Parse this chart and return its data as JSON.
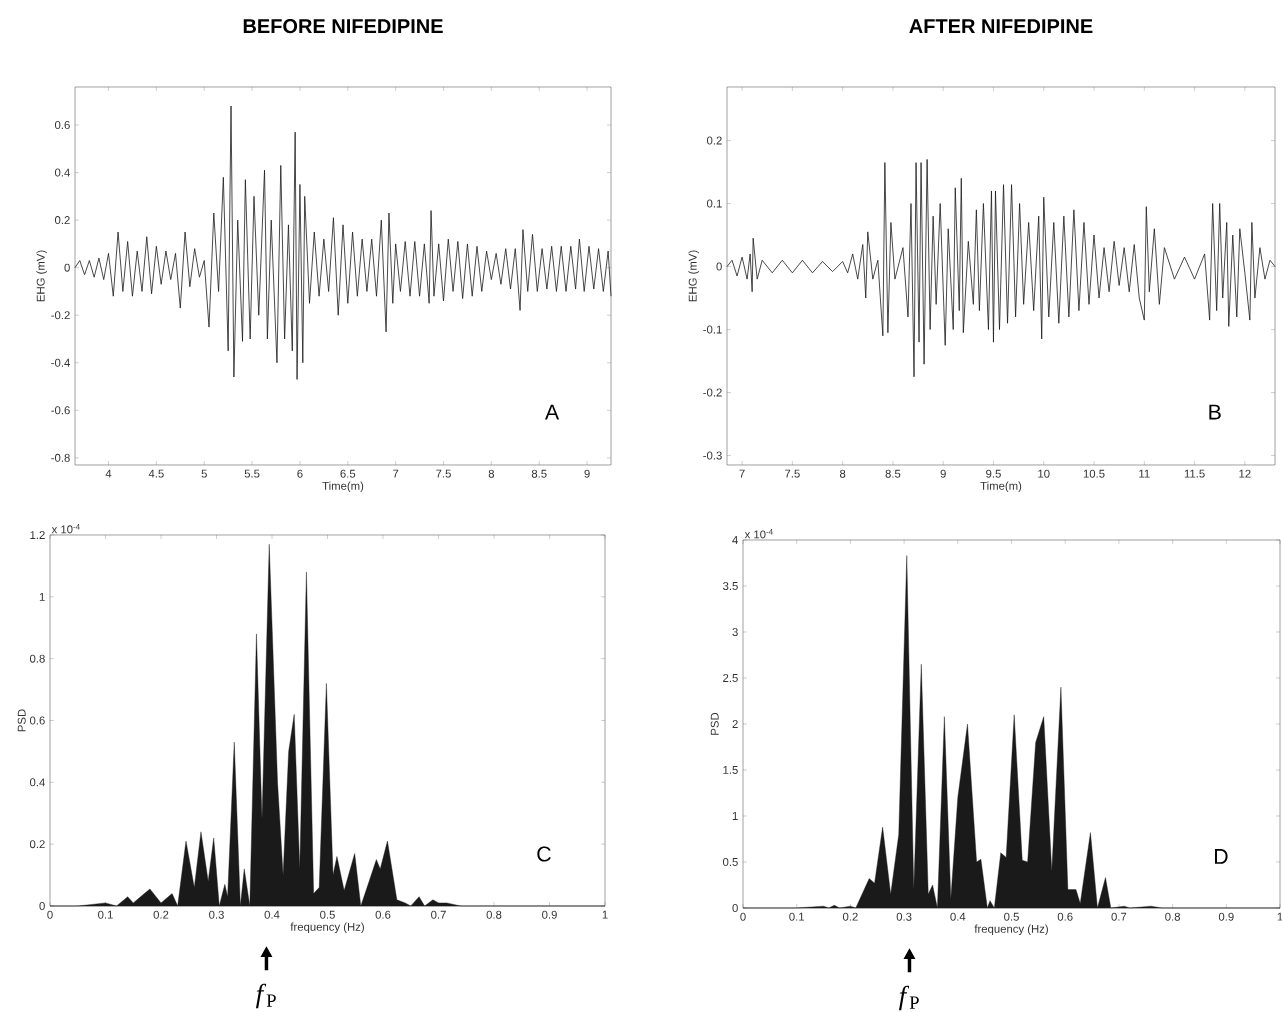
{
  "chart_data": [
    {
      "type": "line",
      "title": "BEFORE NIFEDIPINE",
      "xlabel": "Time(m)",
      "ylabel": "EHG (mV)",
      "xlim": [
        3.65,
        9.25
      ],
      "ylim": [
        -0.83,
        0.76
      ],
      "xticks": [
        4,
        4.5,
        5,
        5.5,
        6,
        6.5,
        7,
        7.5,
        8,
        8.5,
        9
      ],
      "yticks": [
        -0.8,
        -0.6,
        -0.4,
        -0.2,
        0,
        0.2,
        0.4,
        0.6
      ],
      "annotations": [
        "A"
      ],
      "series": [
        {
          "color": "#1a1a1a",
          "x": [
            3.65,
            3.7,
            3.75,
            3.8,
            3.85,
            3.9,
            3.95,
            4.0,
            4.05,
            4.1,
            4.15,
            4.2,
            4.25,
            4.3,
            4.35,
            4.4,
            4.45,
            4.5,
            4.55,
            4.6,
            4.65,
            4.7,
            4.75,
            4.8,
            4.85,
            4.9,
            4.95,
            5.0,
            5.05,
            5.1,
            5.15,
            5.2,
            5.25,
            5.28,
            5.31,
            5.35,
            5.4,
            5.43,
            5.48,
            5.52,
            5.57,
            5.63,
            5.66,
            5.7,
            5.76,
            5.8,
            5.84,
            5.88,
            5.92,
            5.95,
            5.97,
            6.0,
            6.03,
            6.05,
            6.1,
            6.15,
            6.2,
            6.25,
            6.3,
            6.35,
            6.4,
            6.45,
            6.5,
            6.55,
            6.6,
            6.65,
            6.7,
            6.75,
            6.8,
            6.85,
            6.9,
            6.93,
            6.97,
            7.0,
            7.05,
            7.1,
            7.15,
            7.2,
            7.25,
            7.3,
            7.35,
            7.37,
            7.4,
            7.45,
            7.5,
            7.55,
            7.6,
            7.65,
            7.7,
            7.75,
            7.8,
            7.85,
            7.9,
            7.95,
            8.0,
            8.05,
            8.1,
            8.15,
            8.2,
            8.25,
            8.3,
            8.33,
            8.38,
            8.43,
            8.48,
            8.53,
            8.58,
            8.63,
            8.68,
            8.73,
            8.78,
            8.83,
            8.88,
            8.92,
            8.97,
            9.02,
            9.07,
            9.12,
            9.17,
            9.22,
            9.25
          ],
          "values": [
            0,
            0.03,
            -0.03,
            0.03,
            -0.04,
            0.04,
            -0.05,
            0.06,
            -0.12,
            0.15,
            -0.1,
            0.11,
            -0.12,
            0.07,
            -0.1,
            0.13,
            -0.11,
            0.09,
            -0.07,
            0.07,
            -0.05,
            0.06,
            -0.17,
            0.15,
            -0.08,
            0.08,
            -0.04,
            0.03,
            -0.25,
            0.23,
            -0.1,
            0.38,
            -0.35,
            0.68,
            -0.46,
            0.2,
            -0.31,
            0.37,
            -0.3,
            0.3,
            -0.2,
            0.41,
            -0.3,
            0.2,
            -0.4,
            0.43,
            -0.3,
            0.18,
            -0.35,
            0.57,
            -0.47,
            0.35,
            -0.4,
            0.3,
            -0.15,
            0.15,
            -0.12,
            0.12,
            -0.1,
            0.21,
            -0.2,
            0.18,
            -0.15,
            0.15,
            -0.12,
            0.12,
            -0.1,
            0.12,
            -0.12,
            0.2,
            -0.27,
            0.23,
            -0.15,
            0.1,
            -0.1,
            0.11,
            -0.12,
            0.11,
            -0.12,
            0.1,
            -0.15,
            0.24,
            -0.12,
            0.1,
            -0.14,
            0.12,
            -0.1,
            0.11,
            -0.13,
            0.1,
            -0.12,
            0.09,
            -0.1,
            0.07,
            -0.05,
            0.06,
            -0.07,
            0.08,
            -0.09,
            0.08,
            -0.18,
            0.16,
            -0.1,
            0.14,
            -0.1,
            0.08,
            -0.09,
            0.09,
            -0.1,
            0.09,
            -0.1,
            0.09,
            -0.09,
            0.12,
            -0.1,
            0.09,
            -0.09,
            0.08,
            -0.1,
            0.07,
            -0.12
          ]
        }
      ]
    },
    {
      "type": "line",
      "title": "AFTER NIFEDIPINE",
      "xlabel": "Time(m)",
      "ylabel": "EHG (mV)",
      "xlim": [
        6.85,
        12.3
      ],
      "ylim": [
        -0.315,
        0.285
      ],
      "xticks": [
        7,
        7.5,
        8,
        8.5,
        9,
        9.5,
        10,
        10.5,
        11,
        11.5,
        12
      ],
      "yticks": [
        -0.3,
        -0.2,
        -0.1,
        0,
        0.1,
        0.2
      ],
      "annotations": [
        "B"
      ],
      "series": [
        {
          "color": "#1a1a1a",
          "x": [
            6.85,
            6.9,
            6.95,
            7.0,
            7.05,
            7.08,
            7.1,
            7.11,
            7.15,
            7.2,
            7.3,
            7.4,
            7.5,
            7.6,
            7.7,
            7.8,
            7.9,
            8.0,
            8.05,
            8.1,
            8.15,
            8.2,
            8.23,
            8.25,
            8.3,
            8.35,
            8.4,
            8.42,
            8.45,
            8.48,
            8.52,
            8.6,
            8.65,
            8.68,
            8.71,
            8.73,
            8.76,
            8.78,
            8.81,
            8.84,
            8.87,
            8.9,
            8.93,
            8.97,
            9.02,
            9.05,
            9.1,
            9.12,
            9.16,
            9.18,
            9.2,
            9.25,
            9.3,
            9.33,
            9.36,
            9.4,
            9.45,
            9.48,
            9.5,
            9.52,
            9.56,
            9.6,
            9.64,
            9.68,
            9.72,
            9.76,
            9.8,
            9.85,
            9.9,
            9.95,
            9.98,
            10.0,
            10.05,
            10.1,
            10.15,
            10.2,
            10.25,
            10.3,
            10.35,
            10.4,
            10.45,
            10.5,
            10.55,
            10.6,
            10.65,
            10.7,
            10.75,
            10.8,
            10.85,
            10.9,
            10.95,
            11.0,
            11.02,
            11.05,
            11.1,
            11.15,
            11.2,
            11.3,
            11.4,
            11.5,
            11.6,
            11.65,
            11.68,
            11.72,
            11.75,
            11.78,
            11.82,
            11.84,
            11.88,
            11.92,
            11.95,
            12.0,
            12.05,
            12.07,
            12.1,
            12.15,
            12.2,
            12.25,
            12.3
          ],
          "values": [
            0,
            0.01,
            -0.015,
            0.015,
            -0.02,
            0.02,
            -0.04,
            0.045,
            -0.02,
            0.01,
            -0.01,
            0.01,
            -0.01,
            0.01,
            -0.01,
            0.008,
            -0.008,
            0.008,
            -0.01,
            0.02,
            -0.02,
            0.035,
            -0.05,
            0.055,
            -0.02,
            0.01,
            -0.11,
            0.165,
            -0.105,
            0.07,
            -0.02,
            0.03,
            -0.08,
            0.1,
            -0.175,
            0.165,
            -0.12,
            0.165,
            -0.155,
            0.17,
            -0.1,
            0.08,
            -0.06,
            0.1,
            -0.125,
            0.06,
            -0.1,
            0.125,
            -0.07,
            0.14,
            -0.105,
            0.04,
            -0.06,
            0.09,
            -0.07,
            0.1,
            -0.1,
            0.12,
            -0.12,
            0.12,
            -0.1,
            0.13,
            -0.09,
            0.13,
            -0.08,
            0.1,
            -0.06,
            0.07,
            -0.07,
            0.08,
            -0.115,
            0.11,
            -0.08,
            0.07,
            -0.09,
            0.08,
            -0.08,
            0.09,
            -0.07,
            0.07,
            -0.06,
            0.05,
            -0.05,
            0.03,
            -0.04,
            0.04,
            -0.03,
            0.03,
            -0.04,
            0.035,
            -0.05,
            -0.085,
            0.095,
            -0.04,
            0.06,
            -0.06,
            0.03,
            -0.02,
            0.015,
            -0.02,
            0.02,
            -0.085,
            0.1,
            -0.07,
            0.1,
            -0.05,
            0.07,
            -0.095,
            0.05,
            -0.08,
            0.06,
            -0.01,
            -0.085,
            0.07,
            -0.05,
            0.03,
            -0.02,
            0.01,
            0
          ]
        }
      ]
    },
    {
      "type": "area",
      "xlabel": "frequency (Hz)",
      "ylabel": "PSD",
      "xlim": [
        0,
        1
      ],
      "ylim": [
        0,
        1.2
      ],
      "xticks": [
        0,
        0.1,
        0.2,
        0.3,
        0.4,
        0.5,
        0.6,
        0.7,
        0.8,
        0.9,
        1
      ],
      "yticks": [
        0,
        0.2,
        0.4,
        0.6,
        0.8,
        1,
        1.2
      ],
      "annotations": [
        "C",
        "x 10$^{-4}$",
        {
          "text": "*f*$_{P}$",
          "x": 0.39,
          "y": 0
        }
      ],
      "series": [
        {
          "color": "#1a1a1a",
          "x": [
            0,
            0.05,
            0.1,
            0.12,
            0.14,
            0.15,
            0.17,
            0.18,
            0.2,
            0.22,
            0.23,
            0.245,
            0.26,
            0.272,
            0.285,
            0.295,
            0.305,
            0.315,
            0.32,
            0.332,
            0.343,
            0.35,
            0.36,
            0.372,
            0.382,
            0.395,
            0.41,
            0.42,
            0.43,
            0.44,
            0.45,
            0.462,
            0.475,
            0.485,
            0.498,
            0.51,
            0.517,
            0.53,
            0.549,
            0.56,
            0.575,
            0.588,
            0.595,
            0.608,
            0.625,
            0.64,
            0.65,
            0.665,
            0.675,
            0.69,
            0.7,
            0.715,
            0.74,
            0.8,
            1
          ],
          "values": [
            0,
            0,
            0.01,
            0,
            0.03,
            0.01,
            0.04,
            0.055,
            0.01,
            0.04,
            0,
            0.21,
            0.06,
            0.24,
            0.08,
            0.22,
            0,
            0.07,
            0.03,
            0.53,
            0,
            0.12,
            0,
            0.88,
            0.28,
            1.17,
            0.4,
            0.1,
            0.5,
            0.62,
            0.12,
            1.08,
            0.04,
            0.06,
            0.72,
            0.1,
            0.16,
            0.05,
            0.17,
            0,
            0.08,
            0.15,
            0.12,
            0.21,
            0.02,
            0.01,
            0,
            0.03,
            0,
            0.02,
            0.01,
            0.01,
            0,
            0,
            0
          ]
        }
      ]
    },
    {
      "type": "area",
      "xlabel": "frequency (Hz)",
      "ylabel": "PSD",
      "xlim": [
        0,
        1
      ],
      "ylim": [
        0,
        4
      ],
      "xticks": [
        0,
        0.1,
        0.2,
        0.3,
        0.4,
        0.5,
        0.6,
        0.7,
        0.8,
        0.9,
        1
      ],
      "yticks": [
        0,
        0.5,
        1,
        1.5,
        2,
        2.5,
        3,
        3.5,
        4
      ],
      "annotations": [
        "D",
        "x 10$^{-4}$",
        {
          "text": "*f*$_{P}$",
          "x": 0.31,
          "y": 0
        }
      ],
      "series": [
        {
          "color": "#1a1a1a",
          "x": [
            0,
            0.1,
            0.15,
            0.16,
            0.17,
            0.18,
            0.2,
            0.21,
            0.235,
            0.245,
            0.26,
            0.275,
            0.29,
            0.305,
            0.318,
            0.332,
            0.345,
            0.353,
            0.362,
            0.375,
            0.387,
            0.4,
            0.418,
            0.435,
            0.443,
            0.455,
            0.46,
            0.468,
            0.48,
            0.49,
            0.505,
            0.52,
            0.53,
            0.545,
            0.56,
            0.575,
            0.592,
            0.605,
            0.62,
            0.628,
            0.647,
            0.66,
            0.675,
            0.685,
            0.71,
            0.72,
            0.76,
            0.78,
            1
          ],
          "values": [
            0,
            0,
            0.02,
            0,
            0.03,
            0,
            0.02,
            0,
            0.32,
            0.27,
            0.88,
            0.15,
            0.8,
            3.83,
            0.2,
            2.65,
            0.15,
            0.25,
            0,
            2.08,
            0.1,
            1.2,
            2.0,
            0.5,
            0.53,
            0,
            0.08,
            0,
            0.6,
            0.55,
            2.1,
            0.52,
            0.5,
            1.8,
            2.08,
            0.4,
            2.4,
            0.2,
            0.2,
            0.05,
            0.82,
            0,
            0.33,
            0,
            0.02,
            0,
            0.02,
            0,
            0
          ]
        }
      ]
    }
  ]
}
